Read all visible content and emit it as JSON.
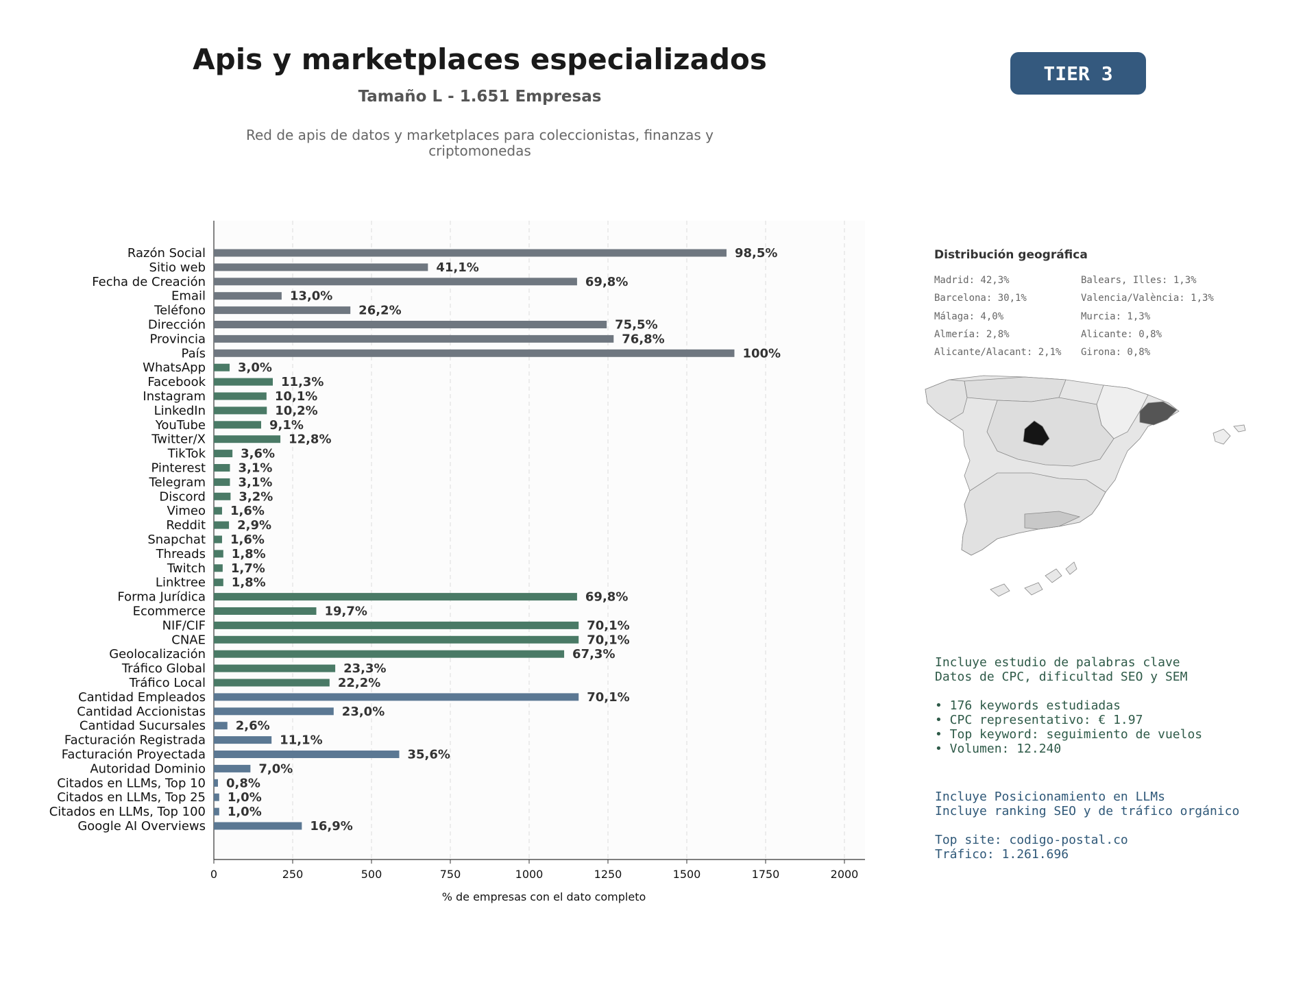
{
  "header": {
    "title": "Apis y marketplaces especializados",
    "subtitle": "Tamaño L - 1.651 Empresas",
    "description": "Red de apis de datos y marketplaces para coleccionistas, finanzas y criptomonedas",
    "tier": "TIER 3"
  },
  "chart_data": {
    "type": "bar",
    "orientation": "horizontal",
    "xlabel": "% de empresas con el dato completo",
    "xlim": [
      0,
      2000
    ],
    "xticks": [
      "0",
      "250",
      "500",
      "750",
      "1000",
      "1250",
      "1500",
      "1750",
      "2000"
    ],
    "grid": "vertical dashed",
    "categories": [
      "Razón Social",
      "Sitio web",
      "Fecha de Creación",
      "Email",
      "Teléfono",
      "Dirección",
      "Provincia",
      "País",
      "WhatsApp",
      "Facebook",
      "Instagram",
      "LinkedIn",
      "YouTube",
      "Twitter/X",
      "TikTok",
      "Pinterest",
      "Telegram",
      "Discord",
      "Vimeo",
      "Reddit",
      "Snapchat",
      "Threads",
      "Twitch",
      "Linktree",
      "Forma Jurídica",
      "Ecommerce",
      "NIF/CIF",
      "CNAE",
      "Geolocalización",
      "Tráfico Global",
      "Tráfico Local",
      "Cantidad Empleados",
      "Cantidad Accionistas",
      "Cantidad Sucursales",
      "Facturación Registrada",
      "Facturación Proyectada",
      "Autoridad Dominio",
      "Citados en LLMs, Top 10",
      "Citados en LLMs, Top 25",
      "Citados en LLMs, Top 100",
      "Google AI Overviews"
    ],
    "values": [
      1626,
      679,
      1152,
      215,
      433,
      1246,
      1268,
      1651,
      50,
      187,
      167,
      168,
      150,
      211,
      59,
      51,
      51,
      53,
      26,
      48,
      26,
      30,
      28,
      30,
      1152,
      325,
      1157,
      1157,
      1111,
      385,
      367,
      1157,
      380,
      43,
      183,
      588,
      116,
      13,
      17,
      17,
      279
    ],
    "labels": [
      "98,5%",
      "41,1%",
      "69,8%",
      "13,0%",
      "26,2%",
      "75,5%",
      "76,8%",
      "100%",
      "3,0%",
      "11,3%",
      "10,1%",
      "10,2%",
      "9,1%",
      "12,8%",
      "3,6%",
      "3,1%",
      "3,1%",
      "3,2%",
      "1,6%",
      "2,9%",
      "1,6%",
      "1,8%",
      "1,7%",
      "1,8%",
      "69,8%",
      "19,7%",
      "70,1%",
      "70,1%",
      "67,3%",
      "23,3%",
      "22,2%",
      "70,1%",
      "23,0%",
      "2,6%",
      "11,1%",
      "35,6%",
      "7,0%",
      "0,8%",
      "1,0%",
      "1,0%",
      "16,9%"
    ],
    "colors": {
      "basic": "#6f7780",
      "social": "#4a7a66",
      "business": "#5b7893"
    },
    "color_groups": [
      "basic",
      "basic",
      "basic",
      "basic",
      "basic",
      "basic",
      "basic",
      "basic",
      "social",
      "social",
      "social",
      "social",
      "social",
      "social",
      "social",
      "social",
      "social",
      "social",
      "social",
      "social",
      "social",
      "social",
      "social",
      "social",
      "social",
      "social",
      "social",
      "social",
      "social",
      "social",
      "social",
      "business",
      "business",
      "business",
      "business",
      "business",
      "business",
      "business",
      "business",
      "business",
      "business"
    ]
  },
  "geo": {
    "title": "Distribución geográfica",
    "left": [
      "Madrid: 42,3%",
      "Barcelona: 30,1%",
      "Málaga: 4,0%",
      "Almería: 2,8%",
      "Alicante/Alacant: 2,1%"
    ],
    "right": [
      "Balears, Illes: 1,3%",
      "Valencia/València: 1,3%",
      "Murcia: 1,3%",
      "Alicante: 0,8%",
      "Girona: 0,8%"
    ]
  },
  "seo_info": {
    "line1": "Incluye estudio de palabras clave",
    "line2": "Datos de CPC, dificultad SEO y SEM",
    "b1": "• 176 keywords estudiadas",
    "b2": "• CPC representativo: € 1.97",
    "b3": "• Top keyword: seguimiento de vuelos",
    "b4": "• Volumen: 12.240"
  },
  "llm_info": {
    "line1": "Incluye Posicionamiento en LLMs",
    "line2": "Incluye ranking SEO y de tráfico orgánico",
    "line3": "Top site: codigo-postal.co",
    "line4": "Tráfico: 1.261.696"
  }
}
